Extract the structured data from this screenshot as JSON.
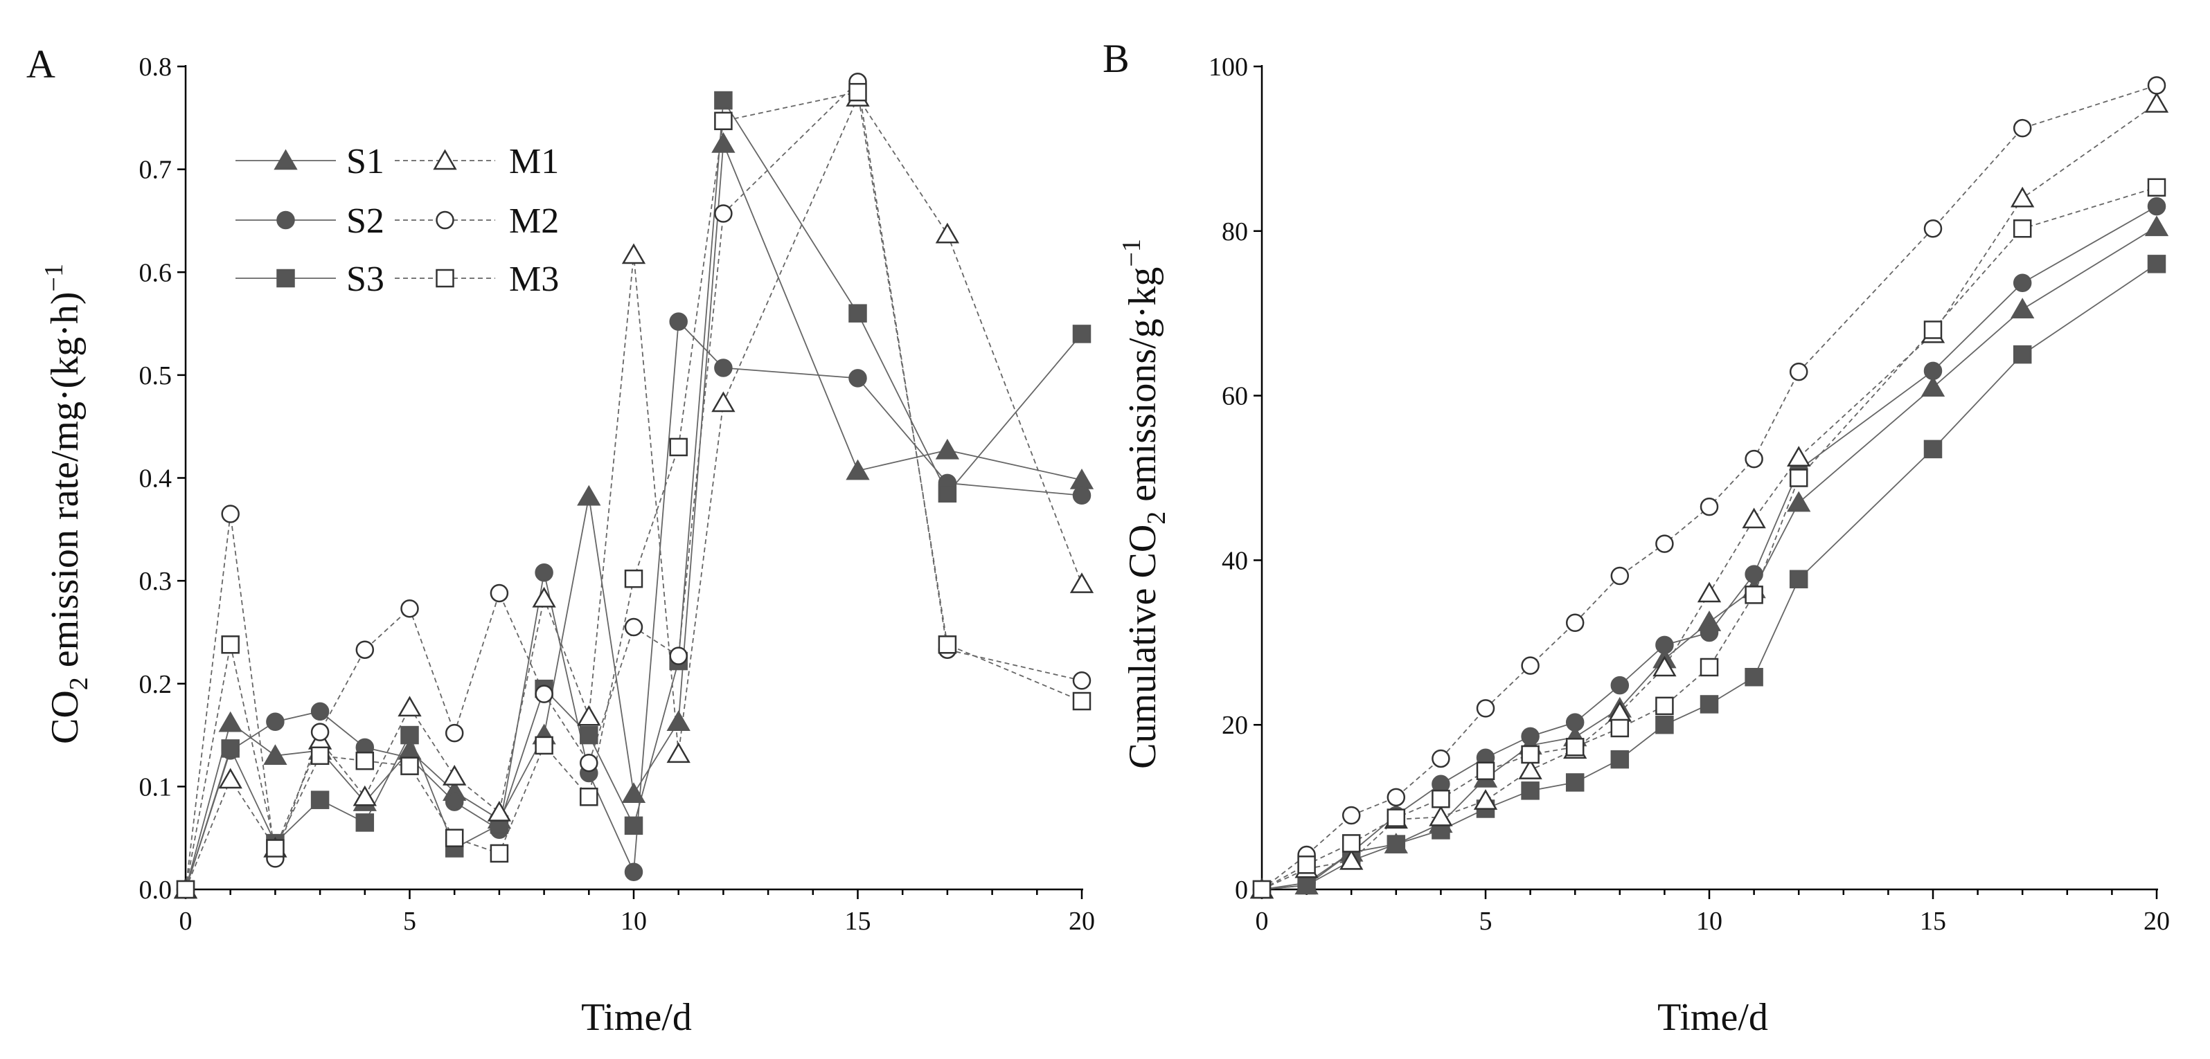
{
  "chart_data": [
    {
      "type": "line",
      "panel_label": "A",
      "title": "",
      "xlabel": "Time/d",
      "ylabel": "CO2 emission rate/mg·(kg·h)−1",
      "ylabel_parts": {
        "pre": "CO",
        "sub": "2",
        "mid": " emission rate/mg·(kg·h)",
        "sup": "−1"
      },
      "xlim": [
        0,
        20
      ],
      "ylim": [
        0,
        0.8
      ],
      "xticks": [
        0,
        5,
        10,
        15,
        20
      ],
      "yticks": [
        0,
        0.1,
        0.2,
        0.3,
        0.4,
        0.5,
        0.6,
        0.7,
        0.8
      ],
      "ytick_decimals": 1,
      "legend_position": "upper-left",
      "x": [
        0,
        1,
        2,
        3,
        4,
        5,
        6,
        7,
        8,
        9,
        10,
        11,
        12,
        15,
        17,
        20
      ],
      "series": [
        {
          "name": "S1",
          "marker": "triangle",
          "filled": true,
          "line": "solid",
          "values": [
            0,
            0.162,
            0.13,
            0.135,
            0.085,
            0.135,
            0.095,
            0.068,
            0.15,
            0.382,
            0.093,
            0.163,
            0.725,
            0.407,
            0.427,
            0.398
          ]
        },
        {
          "name": "S2",
          "marker": "circle",
          "filled": true,
          "line": "solid",
          "values": [
            0,
            0.135,
            0.163,
            0.173,
            0.138,
            0.128,
            0.085,
            0.058,
            0.308,
            0.113,
            0.017,
            0.552,
            0.507,
            0.497,
            0.395,
            0.383
          ]
        },
        {
          "name": "S3",
          "marker": "square",
          "filled": true,
          "line": "solid",
          "values": [
            0,
            0.137,
            0.045,
            0.087,
            0.065,
            0.15,
            0.04,
            0.063,
            0.195,
            0.15,
            0.062,
            0.222,
            0.767,
            0.56,
            0.385,
            0.54
          ]
        },
        {
          "name": "M1",
          "marker": "triangle",
          "filled": false,
          "line": "dashed",
          "values": [
            0,
            0.107,
            0.04,
            0.145,
            0.09,
            0.177,
            0.11,
            0.075,
            0.283,
            0.168,
            0.617,
            0.132,
            0.473,
            0.77,
            0.637,
            0.297
          ]
        },
        {
          "name": "M2",
          "marker": "circle",
          "filled": false,
          "line": "dashed",
          "values": [
            0,
            0.365,
            0.03,
            0.153,
            0.233,
            0.273,
            0.152,
            0.288,
            0.19,
            0.123,
            0.255,
            0.227,
            0.657,
            0.785,
            0.233,
            0.203
          ]
        },
        {
          "name": "M3",
          "marker": "square",
          "filled": false,
          "line": "dashed",
          "values": [
            0,
            0.238,
            0.04,
            0.13,
            0.125,
            0.12,
            0.05,
            0.035,
            0.14,
            0.09,
            0.302,
            0.43,
            0.747,
            0.775,
            0.238,
            0.183
          ]
        }
      ]
    },
    {
      "type": "line",
      "panel_label": "B",
      "title": "",
      "xlabel": "Time/d",
      "ylabel": "Cumulative CO2 emissions/g·kg−1",
      "ylabel_parts": {
        "pre": "Cumulative CO",
        "sub": "2",
        "mid": " emissions/g·kg",
        "sup": "−1"
      },
      "xlim": [
        0,
        20
      ],
      "ylim": [
        0,
        100
      ],
      "xticks": [
        0,
        5,
        10,
        15,
        20
      ],
      "yticks": [
        0,
        20,
        40,
        60,
        80,
        100
      ],
      "ytick_decimals": 0,
      "x": [
        0,
        1,
        2,
        3,
        4,
        5,
        6,
        7,
        8,
        9,
        10,
        11,
        12,
        15,
        17,
        20
      ],
      "series": [
        {
          "name": "S1",
          "marker": "triangle",
          "filled": true,
          "line": "solid",
          "values": [
            0,
            0.5,
            4.5,
            5.5,
            8,
            13.5,
            17.5,
            18.5,
            22,
            28,
            32.5,
            36.5,
            47,
            61,
            70.5,
            80.5
          ]
        },
        {
          "name": "S2",
          "marker": "circle",
          "filled": true,
          "line": "solid",
          "values": [
            0,
            0.8,
            4.5,
            9,
            12.8,
            16,
            18.6,
            20.3,
            24.8,
            29.7,
            31.2,
            38.3,
            51,
            63,
            73.7,
            83
          ]
        },
        {
          "name": "S3",
          "marker": "square",
          "filled": true,
          "line": "solid",
          "values": [
            0,
            0.5,
            3.5,
            5.5,
            7.2,
            9.8,
            12,
            13,
            15.8,
            20,
            22.5,
            25.8,
            37.7,
            53.5,
            65,
            76
          ]
        },
        {
          "name": "M1",
          "marker": "triangle",
          "filled": false,
          "line": "dashed",
          "values": [
            0,
            2.5,
            3.5,
            8.5,
            8.8,
            10.8,
            14.5,
            17,
            21.5,
            27,
            36,
            45,
            52.5,
            67.5,
            84,
            95.5
          ]
        },
        {
          "name": "M2",
          "marker": "circle",
          "filled": false,
          "line": "dashed",
          "values": [
            0,
            4.2,
            9,
            11.2,
            15.9,
            22,
            27.2,
            32.4,
            38.1,
            42,
            46.5,
            52.3,
            62.9,
            80.3,
            92.5,
            97.7
          ]
        },
        {
          "name": "M3",
          "marker": "square",
          "filled": false,
          "line": "dashed",
          "values": [
            0,
            3,
            5.6,
            8.7,
            11,
            14.4,
            16.4,
            17.3,
            19.6,
            22.3,
            27,
            35.8,
            50,
            68,
            80.3,
            85.3
          ]
        }
      ]
    }
  ]
}
